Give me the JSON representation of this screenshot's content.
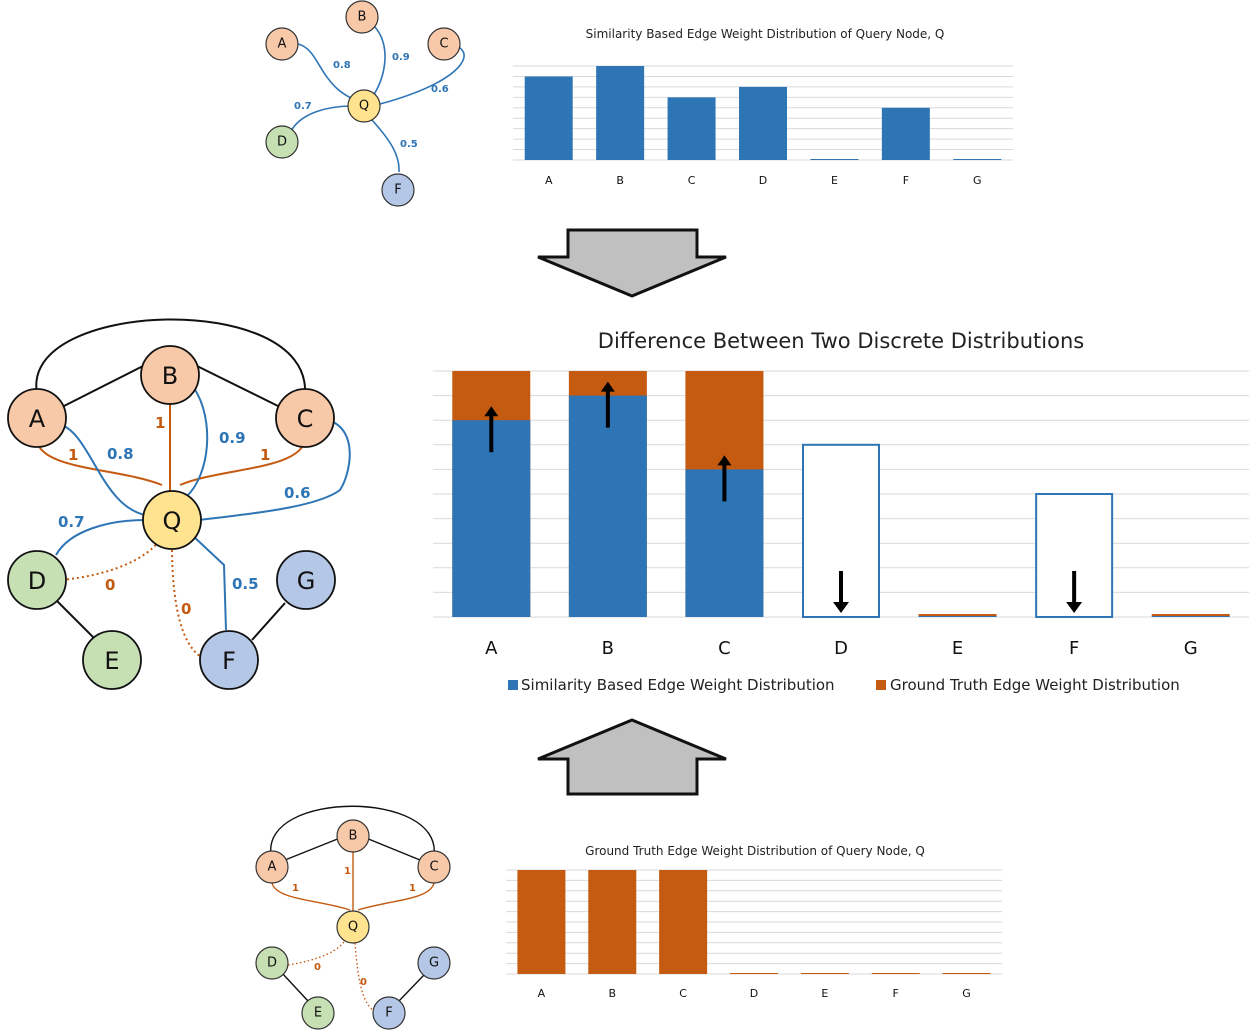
{
  "colors": {
    "blue": "#2e75b6",
    "orange": "#c55a11",
    "node_peach": "#f8c9a9",
    "node_yellow": "#ffe38f",
    "node_green": "#c6e0b4",
    "node_lavender": "#b4c7e7",
    "grid": "#d9d9d9",
    "arrow_fill": "#c0c0c0"
  },
  "nodes": [
    "A",
    "B",
    "C",
    "Q",
    "D",
    "E",
    "F",
    "G"
  ],
  "similarity_weights": {
    "A": "0.8",
    "B": "0.9",
    "C": "0.6",
    "D": "0.7",
    "F": "0.5"
  },
  "ground_truth_weights": {
    "A": "1",
    "B": "1",
    "C": "1",
    "D": "0",
    "F": "0"
  },
  "icons": {
    "down_arrow": "down-block-arrow-icon",
    "up_arrow": "up-block-arrow-icon",
    "change_arrow_up": "up-arrow-icon",
    "change_arrow_down": "down-arrow-icon"
  },
  "chart_data": [
    {
      "type": "bar",
      "title": "Similarity Based Edge Weight Distribution of Query Node, Q",
      "categories": [
        "A",
        "B",
        "C",
        "D",
        "E",
        "F",
        "G"
      ],
      "values": [
        0.8,
        0.9,
        0.6,
        0.7,
        0,
        0.5,
        0
      ],
      "ylim": [
        0,
        0.9
      ],
      "grid": true,
      "color": "#2e75b6"
    },
    {
      "type": "bar",
      "title": "Difference Between Two Discrete Distributions",
      "categories": [
        "A",
        "B",
        "C",
        "D",
        "E",
        "F",
        "G"
      ],
      "series": [
        {
          "name": "Similarity Based Edge Weight Distribution",
          "values": [
            0.8,
            0.9,
            0.6,
            0.7,
            0,
            0.5,
            0
          ]
        },
        {
          "name": "Ground Truth Edge Weight Distribution",
          "values": [
            1,
            1,
            1,
            0,
            0,
            0,
            0
          ]
        }
      ],
      "change_direction": [
        "up",
        "up",
        "up",
        "down",
        "none",
        "down",
        "none"
      ],
      "ylim": [
        0,
        1
      ],
      "grid": true,
      "legend": "bottom"
    },
    {
      "type": "bar",
      "title": "Ground Truth Edge Weight Distribution of Query Node, Q",
      "categories": [
        "A",
        "B",
        "C",
        "D",
        "E",
        "F",
        "G"
      ],
      "values": [
        1,
        1,
        1,
        0,
        0,
        0,
        0
      ],
      "ylim": [
        0,
        1
      ],
      "grid": true,
      "color": "#c55a11"
    }
  ]
}
